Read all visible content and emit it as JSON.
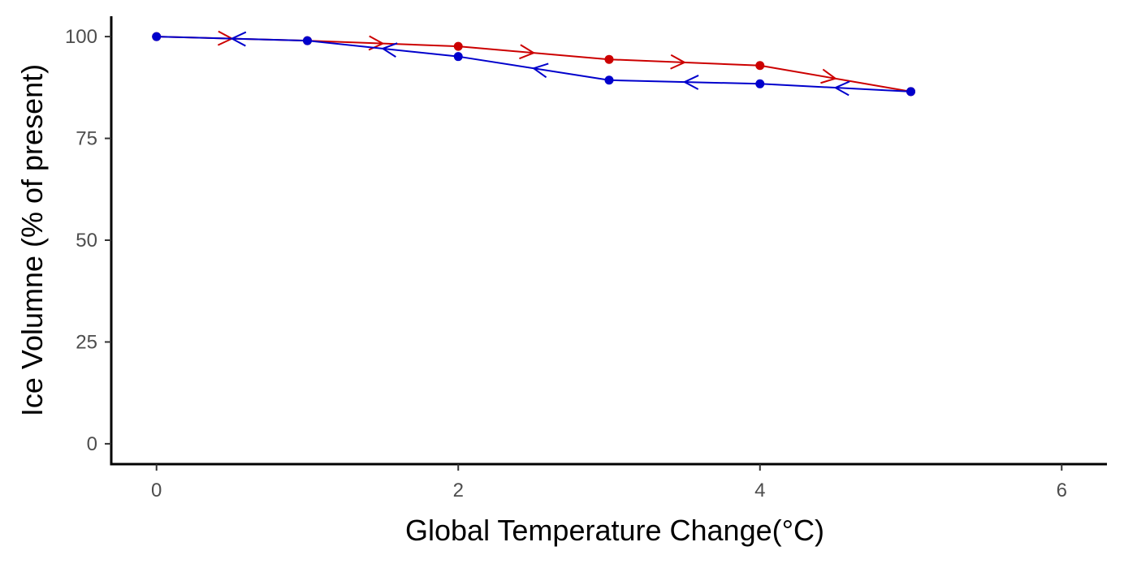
{
  "chart_data": {
    "type": "line",
    "title": "",
    "xlabel": "Global Temperature Change(°C)",
    "ylabel": "Ice Volumne (% of present)",
    "xlim": [
      -0.3,
      6.3
    ],
    "ylim": [
      -5,
      105
    ],
    "x_ticks": [
      "0",
      "2",
      "4",
      "6"
    ],
    "y_ticks": [
      "0",
      "25",
      "50",
      "75",
      "100"
    ],
    "grid": false,
    "legend": "none",
    "series": [
      {
        "color": "#cc0000",
        "direction": "increasing temperature (arrows point right)",
        "x": [
          0,
          1,
          2,
          3,
          4,
          5
        ],
        "y": [
          100,
          99,
          97.6,
          94.4,
          92.9,
          86.5
        ]
      },
      {
        "color": "#0000cc",
        "direction": "decreasing temperature (arrows point left)",
        "x": [
          5,
          4,
          3,
          2,
          1,
          0
        ],
        "y": [
          86.5,
          88.4,
          89.3,
          95.1,
          99,
          100
        ]
      }
    ]
  }
}
